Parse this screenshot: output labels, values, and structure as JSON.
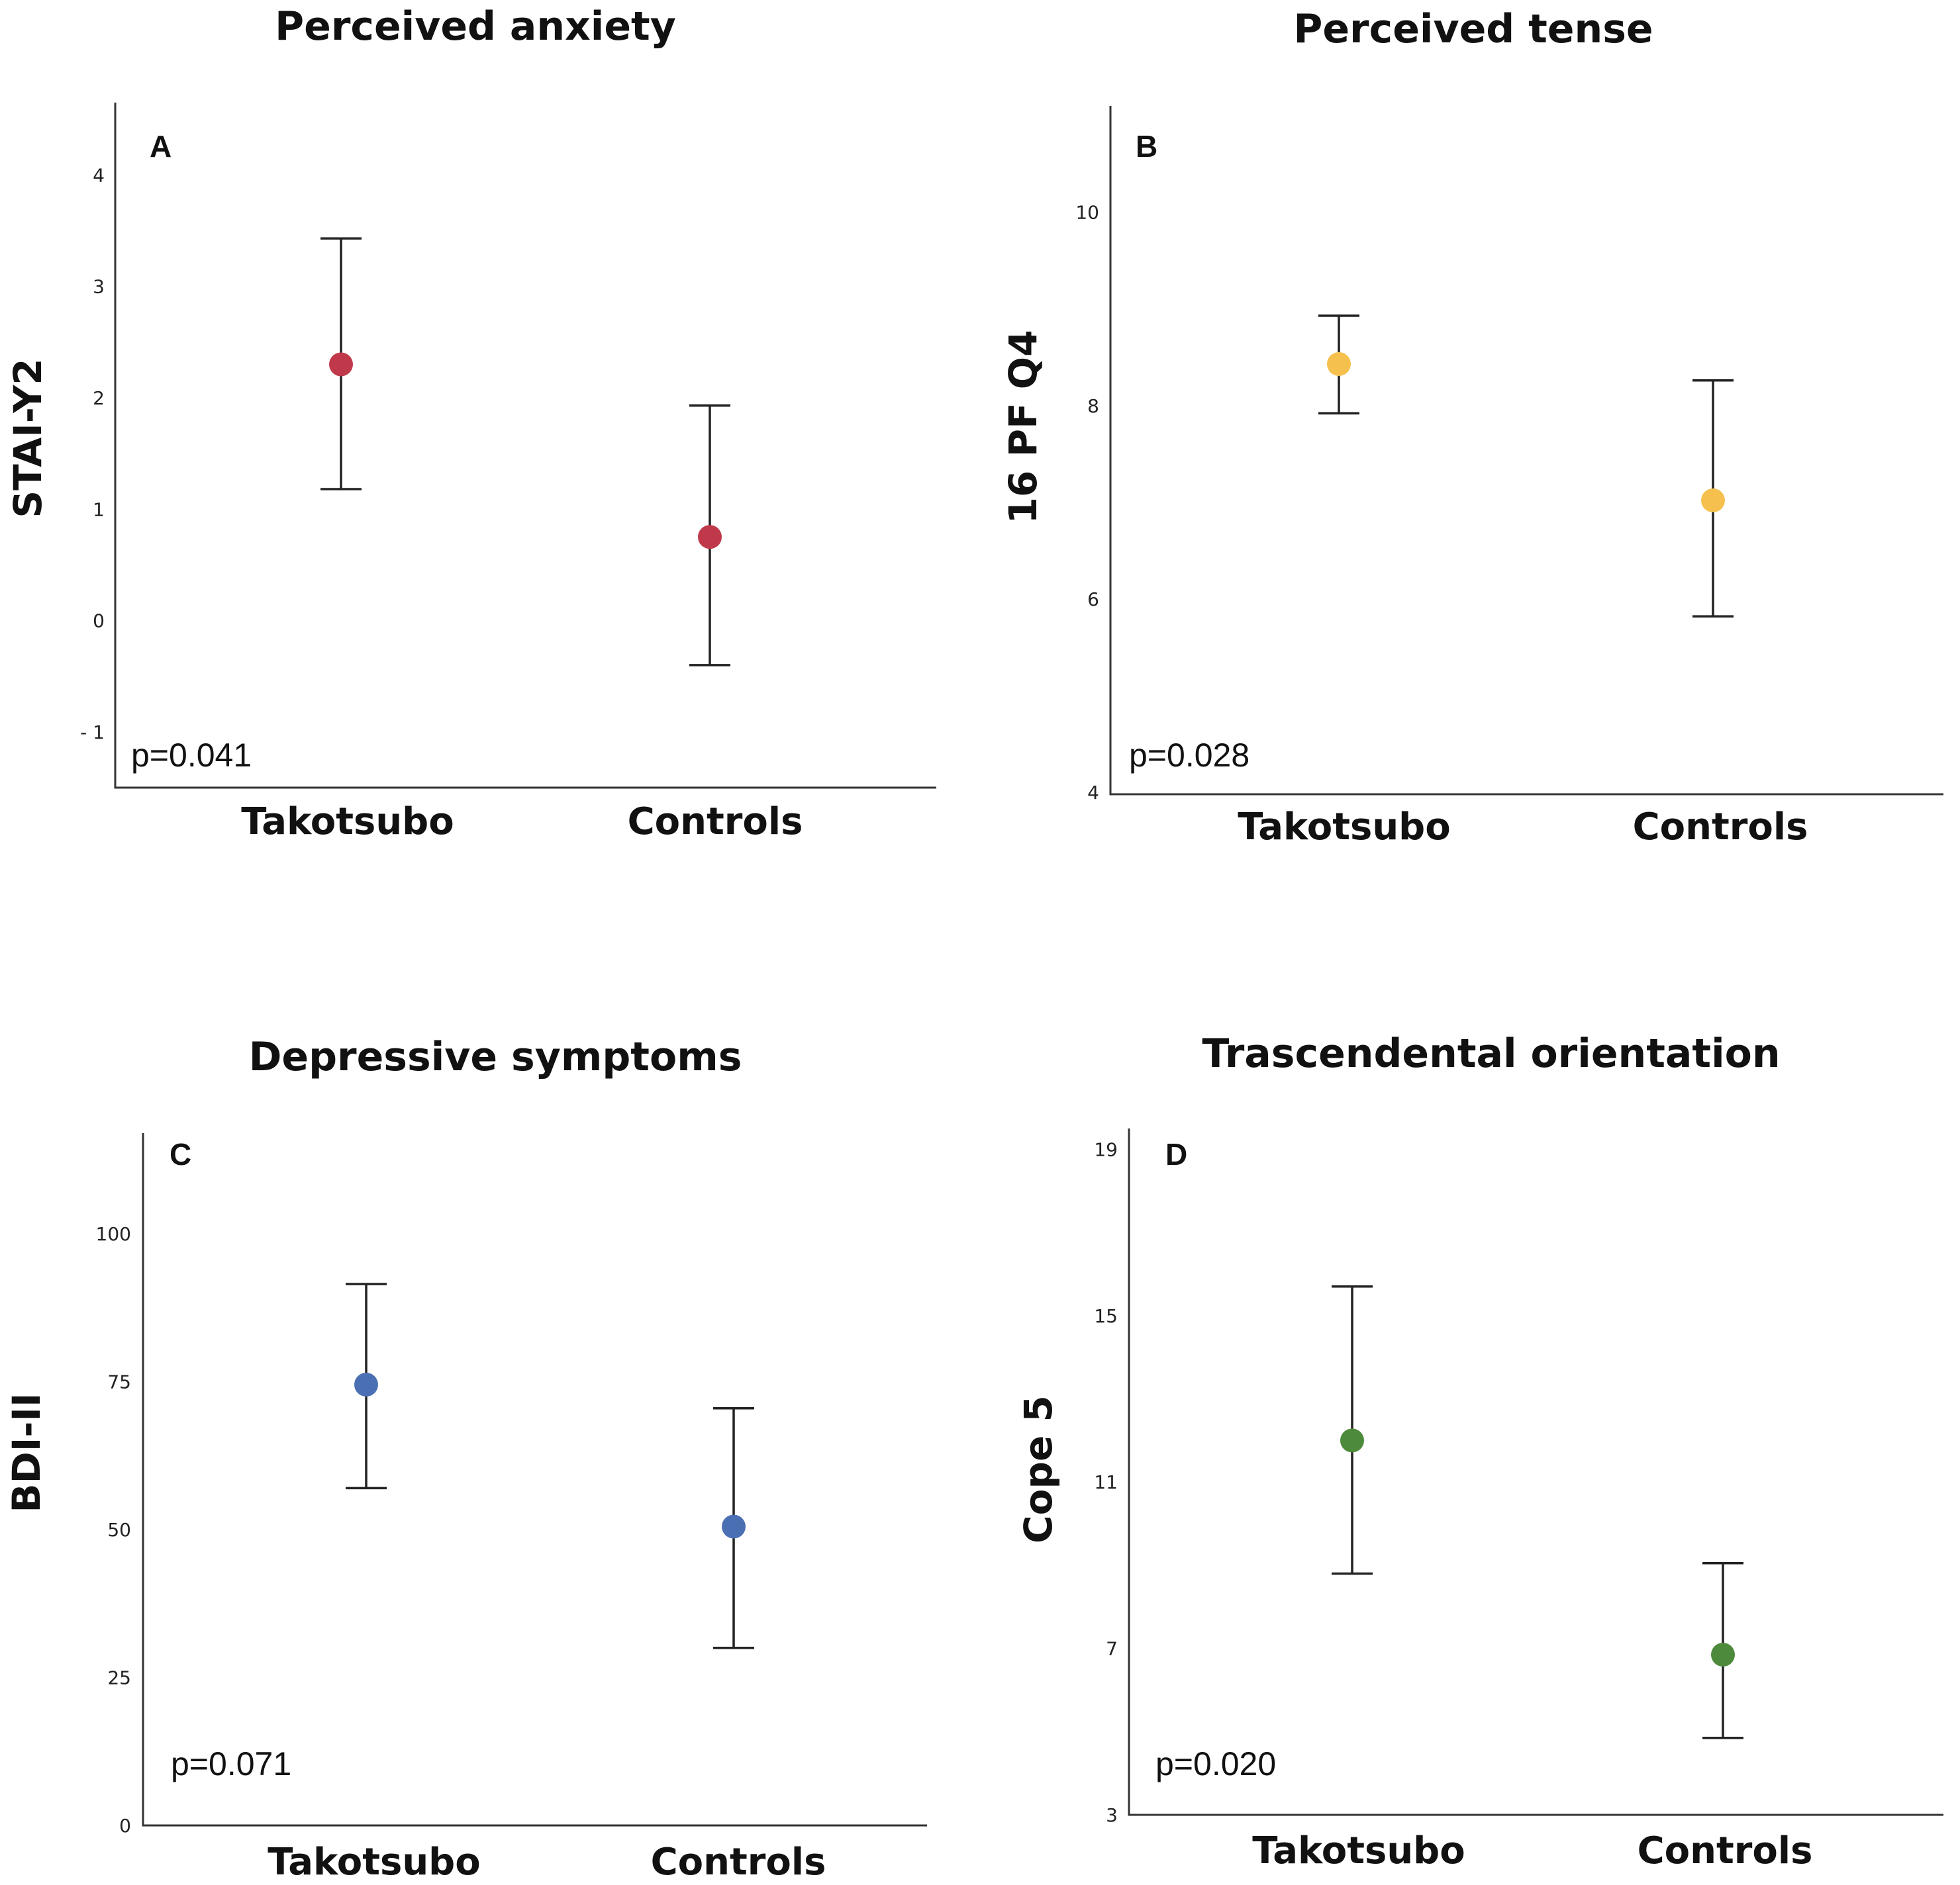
{
  "chart_data": [
    {
      "type": "errorbar",
      "panel": "A",
      "title": "Perceived anxiety",
      "ylabel": "STAI-Y2",
      "xlabel": "",
      "categories": [
        "Takotsubo",
        "Controls"
      ],
      "means": [
        2.3,
        0.75
      ],
      "lower": [
        1.18,
        -0.4
      ],
      "upper": [
        3.43,
        1.93
      ],
      "ylim": [
        -1.5,
        4.65
      ],
      "yticks": [
        4,
        3,
        2,
        1,
        0,
        -1
      ],
      "ytick_labels": [
        "4",
        "3",
        "2",
        "1",
        "0",
        "- 1"
      ],
      "p_value": "p=0.041",
      "color": "#c0394a"
    },
    {
      "type": "errorbar",
      "panel": "B",
      "title": "Perceived tense",
      "ylabel": "16 PF   Q4",
      "xlabel": "",
      "categories": [
        "Takotsubo",
        "Controls"
      ],
      "means": [
        8.43,
        7.02
      ],
      "lower": [
        7.92,
        5.82
      ],
      "upper": [
        8.93,
        8.26
      ],
      "ylim": [
        3.98,
        11.1
      ],
      "yticks": [
        10,
        8,
        6,
        4
      ],
      "ytick_labels": [
        "10",
        "8",
        "6",
        "4"
      ],
      "p_value": "p=0.028",
      "color": "#f5c04d"
    },
    {
      "type": "errorbar",
      "panel": "C",
      "title": "Depressive symptoms",
      "ylabel": "BDI-II",
      "xlabel": "",
      "categories": [
        "Takotsubo",
        "Controls"
      ],
      "means": [
        74.5,
        50.5
      ],
      "lower": [
        57.0,
        30.0
      ],
      "upper": [
        91.5,
        70.5
      ],
      "ylim": [
        0,
        117
      ],
      "yticks": [
        100,
        75,
        50,
        25,
        0
      ],
      "ytick_labels": [
        "100",
        "75",
        "50",
        "25",
        "0"
      ],
      "p_value": "p=0.071",
      "color": "#4a6fb3"
    },
    {
      "type": "errorbar",
      "panel": "D",
      "title": "Trascendental orientation",
      "ylabel": "Cope 5",
      "xlabel": "",
      "categories": [
        "Takotsubo",
        "Controls"
      ],
      "means": [
        12.0,
        6.85
      ],
      "lower": [
        8.8,
        4.85
      ],
      "upper": [
        15.7,
        9.05
      ],
      "ylim": [
        3,
        19.5
      ],
      "yticks": [
        19,
        15,
        11,
        7,
        3
      ],
      "ytick_labels": [
        "19",
        "15",
        "11",
        "7",
        "3"
      ],
      "p_value": "p=0.020",
      "color": "#4e8a3c"
    }
  ]
}
